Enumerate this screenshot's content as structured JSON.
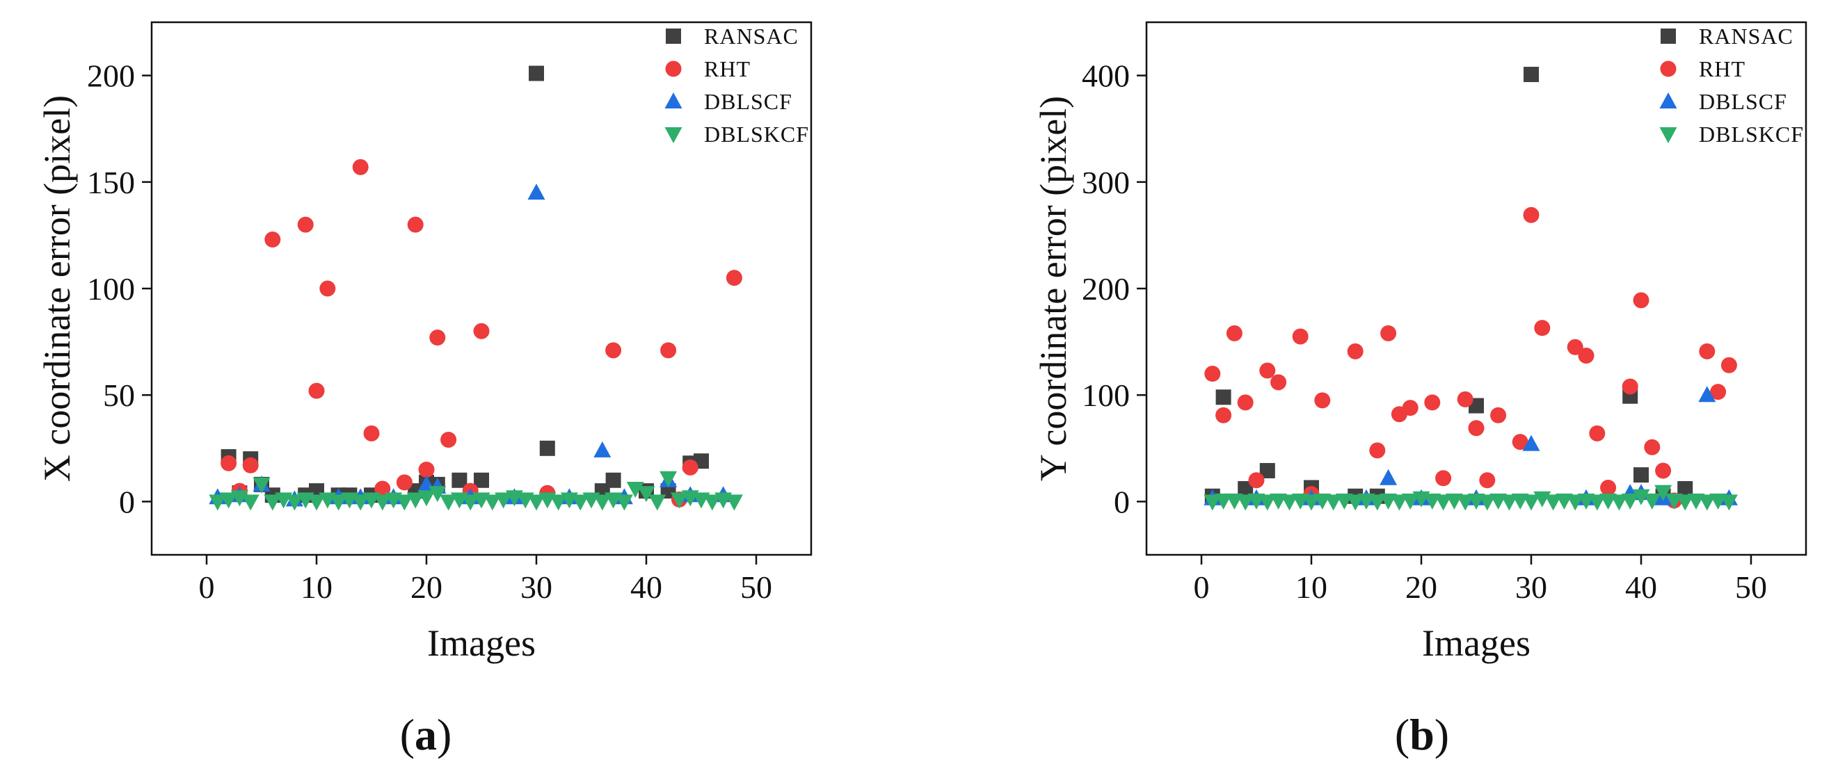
{
  "chart_data": [
    {
      "type": "scatter",
      "panel_label": "a",
      "title": "",
      "xlabel": "Images",
      "ylabel": "X coordinate error (pixel)",
      "xlim": [
        -5,
        55
      ],
      "ylim": [
        -25,
        225
      ],
      "xticks": [
        0,
        10,
        20,
        30,
        40,
        50
      ],
      "yticks": [
        0,
        50,
        100,
        150,
        200
      ],
      "legend_position": "top-right",
      "series": [
        {
          "name": "RANSAC",
          "marker": "square",
          "color": "#404040",
          "x": [
            2,
            3,
            4,
            5,
            6,
            9,
            10,
            12,
            13,
            15,
            19,
            20,
            21,
            23,
            25,
            30,
            31,
            36,
            37,
            40,
            42,
            44,
            45
          ],
          "y": [
            21,
            4,
            20,
            8,
            3,
            3,
            5,
            3,
            3,
            3,
            5,
            9,
            8,
            10,
            10,
            201,
            25,
            5,
            10,
            5,
            5,
            18,
            19
          ]
        },
        {
          "name": "RHT",
          "marker": "circle",
          "color": "#ee3b3b",
          "x": [
            2,
            3,
            4,
            6,
            9,
            10,
            11,
            14,
            15,
            16,
            18,
            19,
            20,
            21,
            22,
            24,
            25,
            31,
            37,
            42,
            43,
            44,
            48
          ],
          "y": [
            18,
            5,
            17,
            123,
            130,
            52,
            100,
            157,
            32,
            6,
            9,
            130,
            15,
            77,
            29,
            5,
            80,
            4,
            71,
            71,
            1,
            16,
            105
          ]
        },
        {
          "name": "DBLSCF",
          "marker": "triangle-up",
          "color": "#1f6fe0",
          "x": [
            1,
            3,
            5,
            8,
            12,
            14,
            17,
            20,
            21,
            24,
            28,
            30,
            33,
            36,
            38,
            42,
            44,
            47
          ],
          "y": [
            2,
            3,
            8,
            1,
            2,
            2,
            2,
            8,
            7,
            2,
            2,
            145,
            2,
            24,
            2,
            10,
            3,
            3
          ]
        },
        {
          "name": "DBLSKCF",
          "marker": "triangle-down",
          "color": "#2eae6a",
          "x": [
            1,
            2,
            3,
            4,
            5,
            6,
            7,
            8,
            9,
            10,
            11,
            12,
            13,
            14,
            15,
            16,
            17,
            18,
            19,
            20,
            21,
            22,
            23,
            24,
            25,
            26,
            27,
            28,
            29,
            30,
            31,
            32,
            33,
            34,
            35,
            36,
            37,
            38,
            39,
            40,
            41,
            42,
            43,
            44,
            45,
            46,
            47,
            48
          ],
          "y": [
            0,
            1,
            2,
            0,
            8,
            0,
            1,
            0,
            1,
            0,
            1,
            0,
            1,
            0,
            1,
            0,
            1,
            0,
            1,
            2,
            4,
            0,
            1,
            0,
            1,
            0,
            1,
            2,
            1,
            0,
            1,
            0,
            1,
            0,
            1,
            0,
            1,
            0,
            6,
            4,
            0,
            11,
            1,
            2,
            1,
            0,
            1,
            0
          ]
        }
      ]
    },
    {
      "type": "scatter",
      "panel_label": "b",
      "title": "",
      "xlabel": "Images",
      "ylabel": "Y coordinate error (pixel)",
      "xlim": [
        -5,
        55
      ],
      "ylim": [
        -50,
        450
      ],
      "xticks": [
        0,
        10,
        20,
        30,
        40,
        50
      ],
      "yticks": [
        0,
        100,
        200,
        300,
        400
      ],
      "legend_position": "top-right",
      "series": [
        {
          "name": "RANSAC",
          "marker": "square",
          "color": "#404040",
          "x": [
            1,
            2,
            4,
            6,
            10,
            14,
            16,
            25,
            30,
            39,
            40,
            42,
            44
          ],
          "y": [
            5,
            98,
            12,
            29,
            13,
            5,
            5,
            90,
            401,
            99,
            25,
            5,
            12
          ]
        },
        {
          "name": "RHT",
          "marker": "circle",
          "color": "#ee3b3b",
          "x": [
            1,
            2,
            3,
            4,
            5,
            6,
            7,
            9,
            10,
            11,
            14,
            16,
            17,
            18,
            19,
            21,
            22,
            24,
            25,
            26,
            27,
            29,
            30,
            31,
            34,
            35,
            36,
            37,
            39,
            40,
            41,
            42,
            43,
            46,
            47,
            48
          ],
          "y": [
            120,
            81,
            158,
            93,
            20,
            123,
            112,
            155,
            7,
            95,
            141,
            48,
            158,
            82,
            88,
            93,
            22,
            96,
            69,
            20,
            81,
            56,
            269,
            163,
            145,
            137,
            64,
            13,
            108,
            189,
            51,
            29,
            1,
            141,
            103,
            128
          ]
        },
        {
          "name": "DBLSCF",
          "marker": "triangle-up",
          "color": "#1f6fe0",
          "x": [
            1,
            5,
            10,
            15,
            17,
            20,
            25,
            30,
            35,
            39,
            40,
            42,
            46,
            48
          ],
          "y": [
            3,
            3,
            3,
            3,
            22,
            3,
            3,
            54,
            3,
            8,
            8,
            3,
            100,
            3
          ]
        },
        {
          "name": "DBLSKCF",
          "marker": "triangle-down",
          "color": "#2eae6a",
          "x": [
            1,
            2,
            3,
            4,
            5,
            6,
            7,
            8,
            9,
            10,
            11,
            12,
            13,
            14,
            15,
            16,
            17,
            18,
            19,
            20,
            21,
            22,
            23,
            24,
            25,
            26,
            27,
            28,
            29,
            30,
            31,
            32,
            33,
            34,
            35,
            36,
            37,
            38,
            39,
            40,
            41,
            42,
            43,
            44,
            45,
            46,
            47,
            48
          ],
          "y": [
            0,
            1,
            1,
            0,
            1,
            0,
            1,
            0,
            1,
            0,
            1,
            0,
            1,
            0,
            1,
            0,
            1,
            0,
            1,
            3,
            1,
            0,
            1,
            0,
            1,
            0,
            1,
            0,
            1,
            0,
            3,
            0,
            1,
            0,
            1,
            0,
            1,
            0,
            1,
            5,
            1,
            9,
            1,
            0,
            1,
            0,
            1,
            0
          ]
        }
      ]
    }
  ]
}
